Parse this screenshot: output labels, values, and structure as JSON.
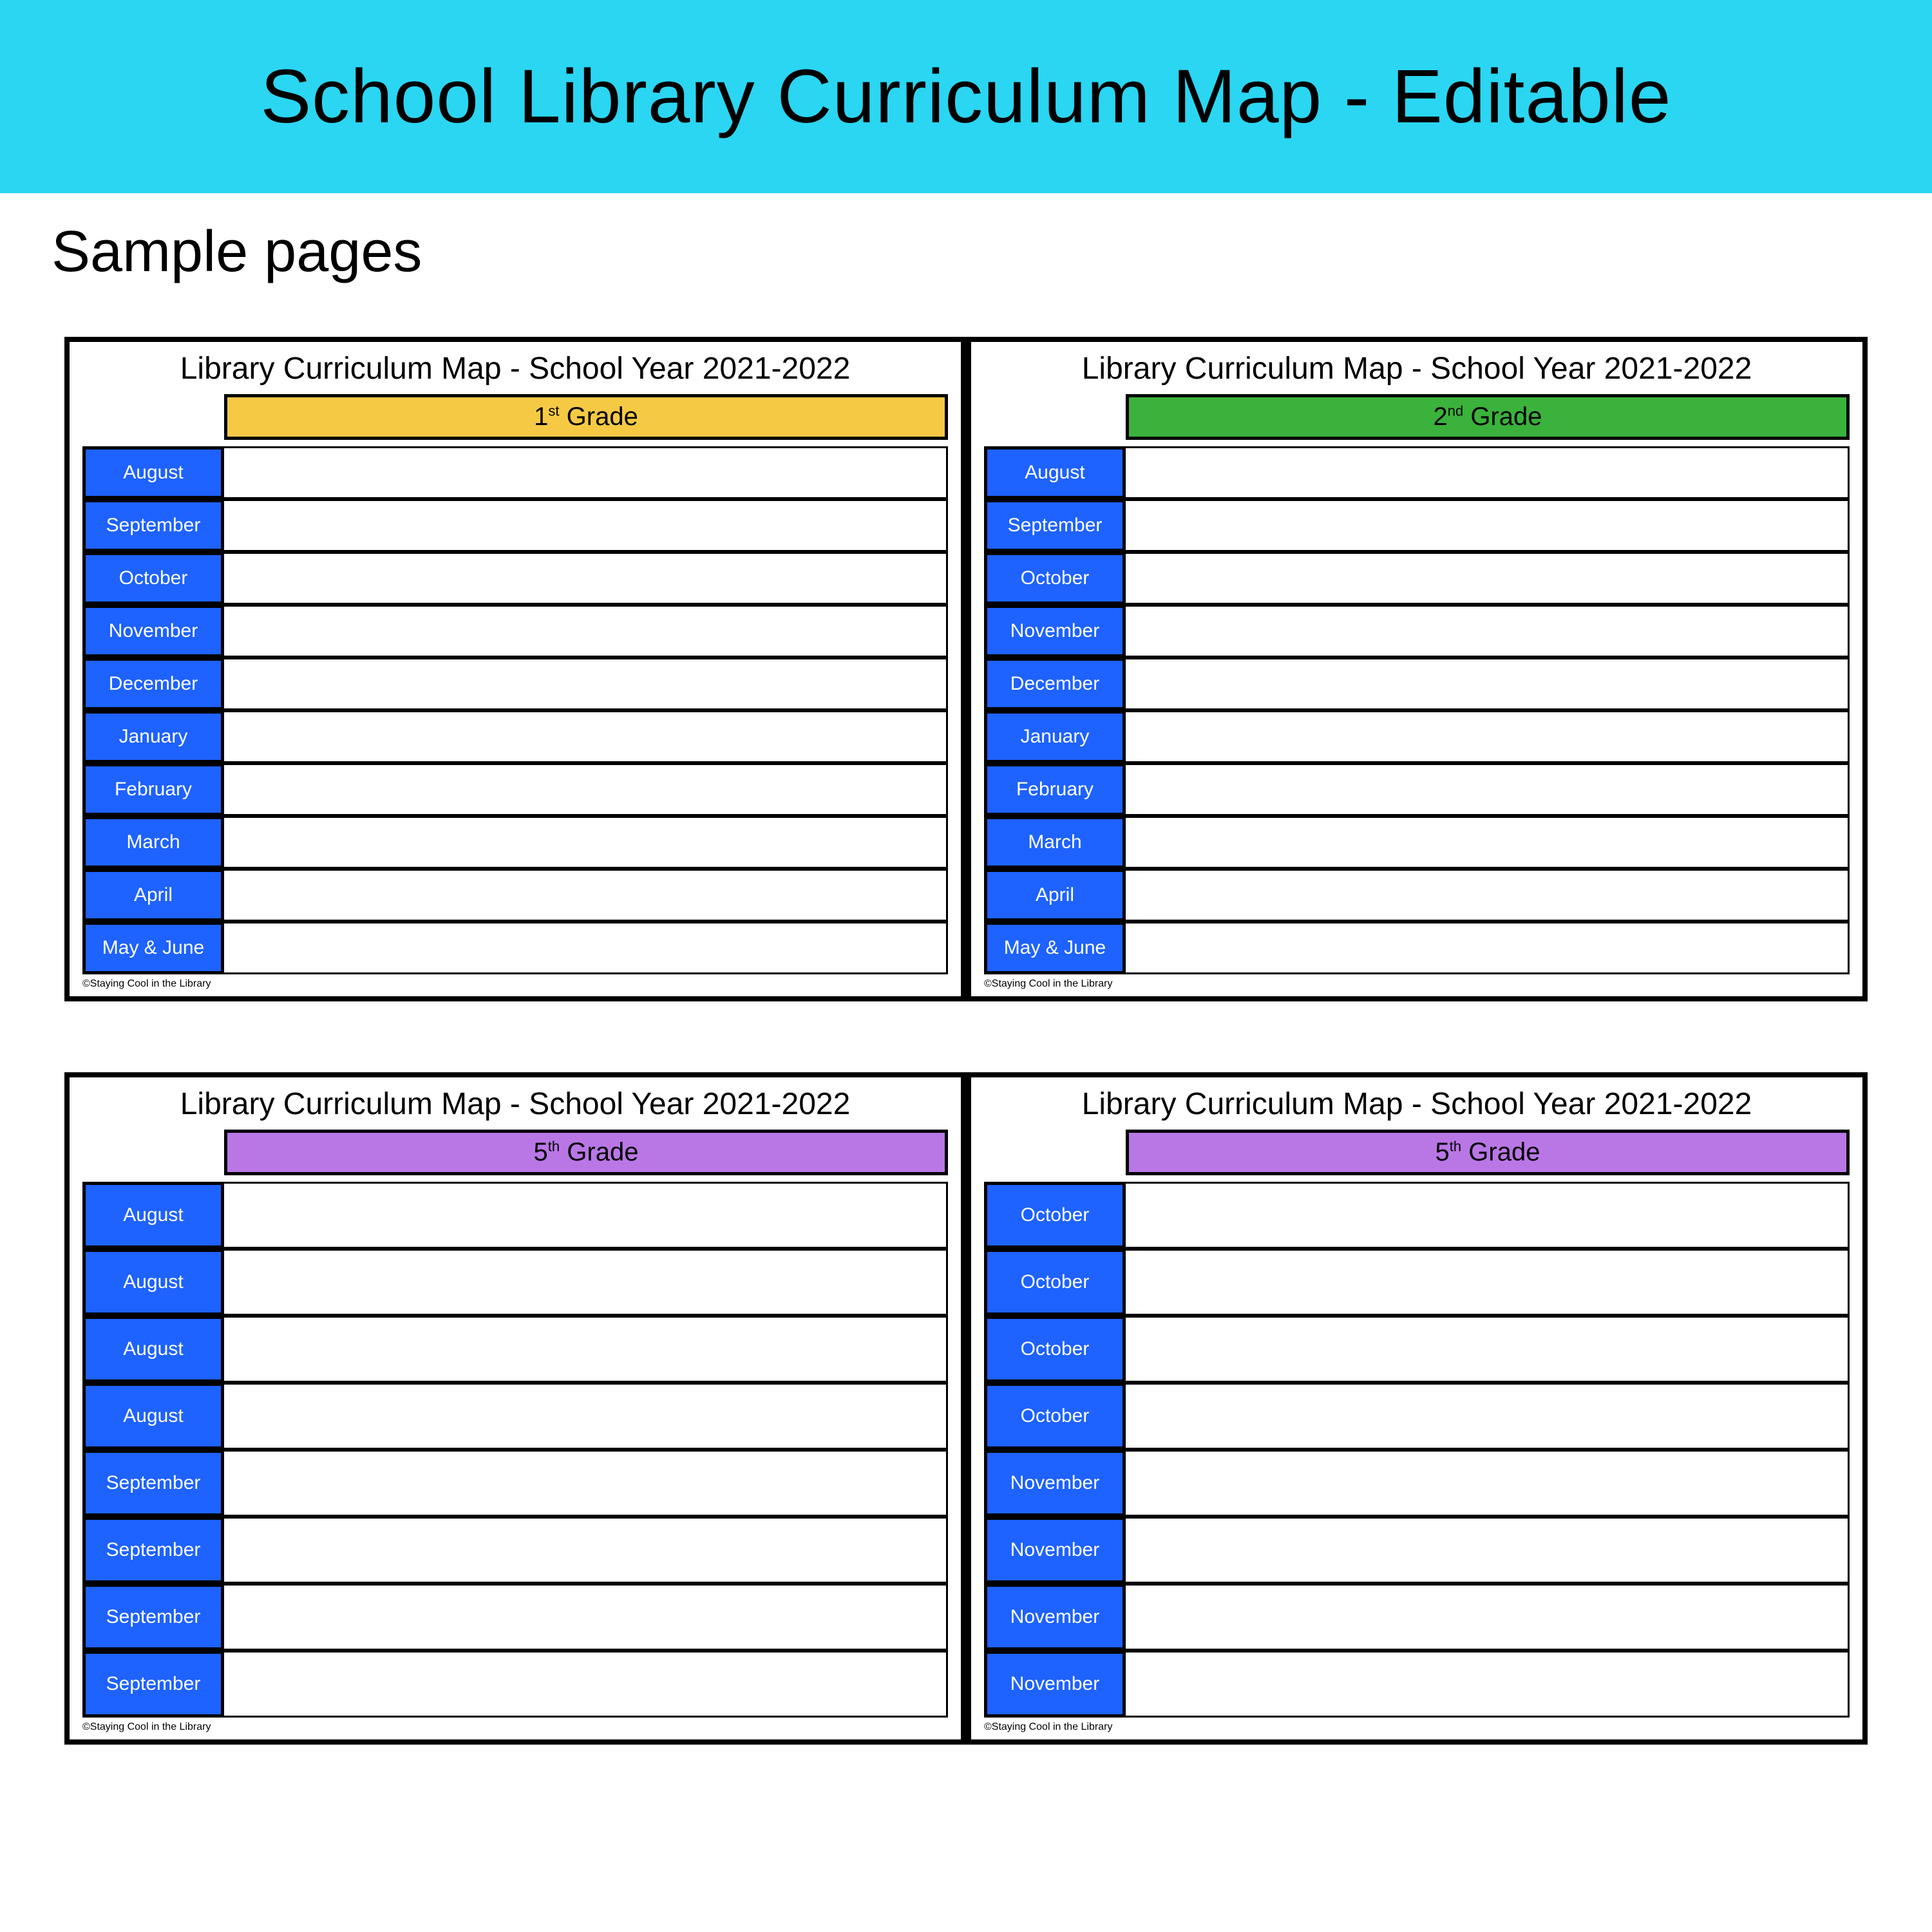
{
  "colors": {
    "banner_bg": "#2ad6f2",
    "month_cell_bg": "#1e62ff",
    "grade_colors": {
      "yellow": "#f6c945",
      "green": "#3bb23b",
      "purple": "#b977e6"
    },
    "text": "#000000",
    "month_text": "#ffffff"
  },
  "banner": {
    "title": "School Library Curriculum Map - Editable"
  },
  "subtitle": "Sample pages",
  "footer_note": "©Staying Cool in the Library",
  "common": {
    "card_title": "Library Curriculum Map - School Year 2021-2022",
    "months_full": [
      "August",
      "September",
      "October",
      "November",
      "December",
      "January",
      "February",
      "March",
      "April",
      "May & June"
    ]
  },
  "cards": [
    {
      "grade_num": "1",
      "grade_suffix": "st",
      "grade_label_tail": " Grade",
      "grade_color_key": "yellow",
      "row_style": "A",
      "months": [
        "August",
        "September",
        "October",
        "November",
        "December",
        "January",
        "February",
        "March",
        "April",
        "May & June"
      ]
    },
    {
      "grade_num": "2",
      "grade_suffix": "nd",
      "grade_label_tail": " Grade",
      "grade_color_key": "green",
      "row_style": "A",
      "months": [
        "August",
        "September",
        "October",
        "November",
        "December",
        "January",
        "February",
        "March",
        "April",
        "May & June"
      ]
    },
    {
      "grade_num": "5",
      "grade_suffix": "th",
      "grade_label_tail": " Grade",
      "grade_color_key": "purple",
      "row_style": "B",
      "months": [
        "August",
        "August",
        "August",
        "August",
        "September",
        "September",
        "September",
        "September"
      ]
    },
    {
      "grade_num": "5",
      "grade_suffix": "th",
      "grade_label_tail": " Grade",
      "grade_color_key": "purple",
      "row_style": "B",
      "months": [
        "October",
        "October",
        "October",
        "October",
        "November",
        "November",
        "November",
        "November"
      ]
    }
  ]
}
